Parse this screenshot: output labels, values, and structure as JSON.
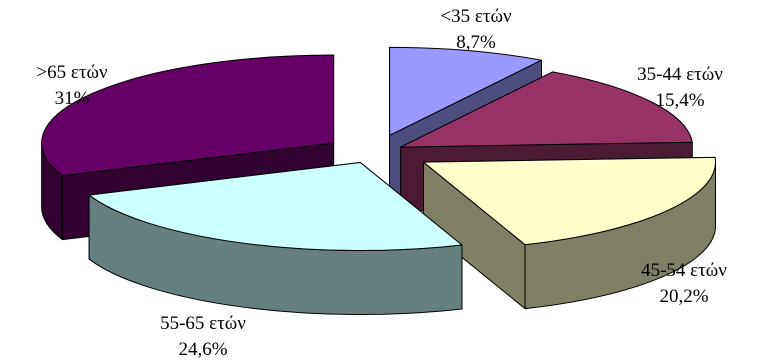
{
  "chart_data": {
    "type": "pie",
    "style": "3d-exploded",
    "title": "",
    "slices": [
      {
        "label": "<35 ετών",
        "value": 8.7,
        "value_label": "8,7%",
        "color": "#9999ff",
        "side_color": "#4d4d80"
      },
      {
        "label": "35-44 ετών",
        "value": 15.4,
        "value_label": "15,4%",
        "color": "#993366",
        "side_color": "#4d1a33"
      },
      {
        "label": "45-54 ετών",
        "value": 20.2,
        "value_label": "20,2%",
        "color": "#ffffcc",
        "side_color": "#808066"
      },
      {
        "label": "55-65 ετών",
        "value": 24.6,
        "value_label": "24,6%",
        "color": "#ccffff",
        "side_color": "#668080"
      },
      {
        "label": ">65 ετών",
        "value": 31,
        "value_label": "31%",
        "color": "#660066",
        "side_color": "#330033"
      }
    ]
  }
}
